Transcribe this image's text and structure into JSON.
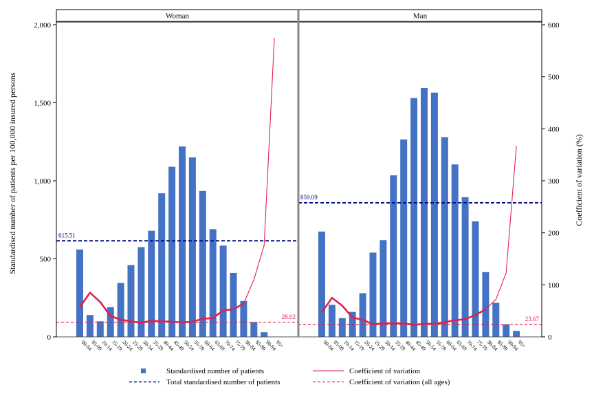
{
  "chart_data": {
    "type": "bar",
    "y_left_label": "Standardised number of patients per 100,000 insured persons",
    "y_right_label": "Coefficient of variation (%)",
    "y_left_lim": [
      0,
      2000
    ],
    "y_left_ticks": [
      "0",
      "500",
      "1,000",
      "1,500",
      "2,000"
    ],
    "y_left_tick_values": [
      0,
      500,
      1000,
      1500,
      2000
    ],
    "y_right_lim": [
      0,
      600
    ],
    "y_right_ticks": [
      "0",
      "100",
      "200",
      "300",
      "400",
      "500",
      "600"
    ],
    "y_right_tick_values": [
      0,
      100,
      200,
      300,
      400,
      500,
      600
    ],
    "categories": [
      "00-04",
      "05-09",
      "10-14",
      "15-19",
      "20-24",
      "25-29",
      "30-34",
      "35-39",
      "40-44",
      "45-49",
      "50-54",
      "55-59",
      "60-64",
      "65-69",
      "70-74",
      "75-79",
      "80-84",
      "85-89",
      "90-94",
      "95+"
    ],
    "panels": [
      {
        "name": "Woman",
        "bars": [
          560,
          140,
          100,
          190,
          345,
          460,
          575,
          680,
          920,
          1090,
          1220,
          1150,
          935,
          690,
          585,
          410,
          230,
          95,
          30,
          0
        ],
        "cv": [
          57,
          85,
          67,
          40,
          33,
          30,
          27,
          31,
          30,
          29,
          28,
          29,
          35,
          36,
          51,
          53,
          64,
          110,
          176,
          575
        ],
        "total": 615.51,
        "total_label": "615.51",
        "cv_all": 28.02,
        "cv_all_label": "28.02"
      },
      {
        "name": "Man",
        "bars": [
          675,
          205,
          120,
          160,
          280,
          540,
          620,
          1035,
          1265,
          1530,
          1595,
          1565,
          1280,
          1105,
          895,
          740,
          415,
          218,
          80,
          38
        ],
        "cv": [
          47,
          75,
          60,
          37,
          33,
          24,
          26,
          26,
          26,
          23,
          25,
          25,
          28,
          32,
          34,
          42,
          53,
          72,
          123,
          367
        ],
        "total": 859.09,
        "total_label": "859.09",
        "cv_all": 23.67,
        "cv_all_label": "23.67"
      }
    ],
    "legend": {
      "bars": "Standardised number of patients",
      "cv": "Coefficient of variation",
      "total": "Total standardised number of patients",
      "cv_all": "Coefficient of variation (all ages)"
    },
    "colors": {
      "bar": "#4472c4",
      "cv": "#e0204a",
      "total": "#00107a",
      "cv_all": "#e0204a"
    }
  }
}
